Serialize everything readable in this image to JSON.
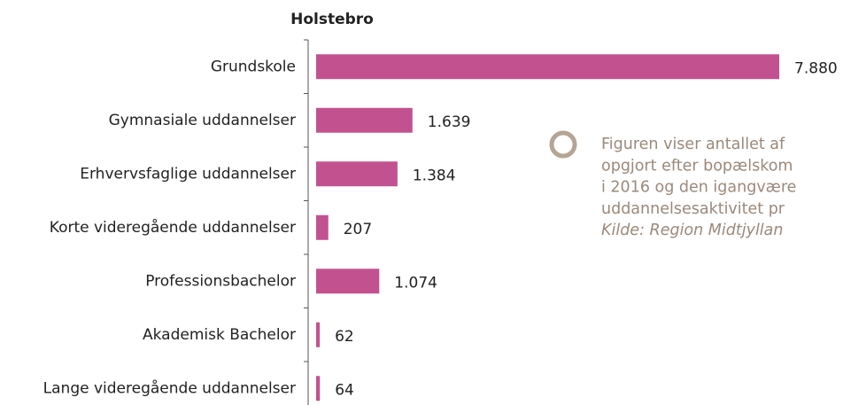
{
  "chart_data": {
    "type": "bar",
    "orientation": "horizontal",
    "title": "Holstebro",
    "categories": [
      "Grundskole",
      "Gymnasiale uddannelser",
      "Erhvervsfaglige uddannelser",
      "Korte videregående uddannelser",
      "Professionsbachelor",
      "Akademisk Bachelor",
      "Lange videregående uddannelser"
    ],
    "values": [
      7880,
      1639,
      1384,
      207,
      1074,
      62,
      64
    ],
    "value_labels": [
      "7.880",
      "1.639",
      "1.384",
      "207",
      "1.074",
      "62",
      "64"
    ],
    "color": "#c2528f",
    "xlim": [
      0,
      8000
    ],
    "annotation": [
      "Figuren viser antallet af",
      "opgjort efter bopælskom",
      "i 2016 og den igangvære",
      "uddannelsesaktivitet pr",
      "Kilde: Region Midtjyllan"
    ]
  }
}
